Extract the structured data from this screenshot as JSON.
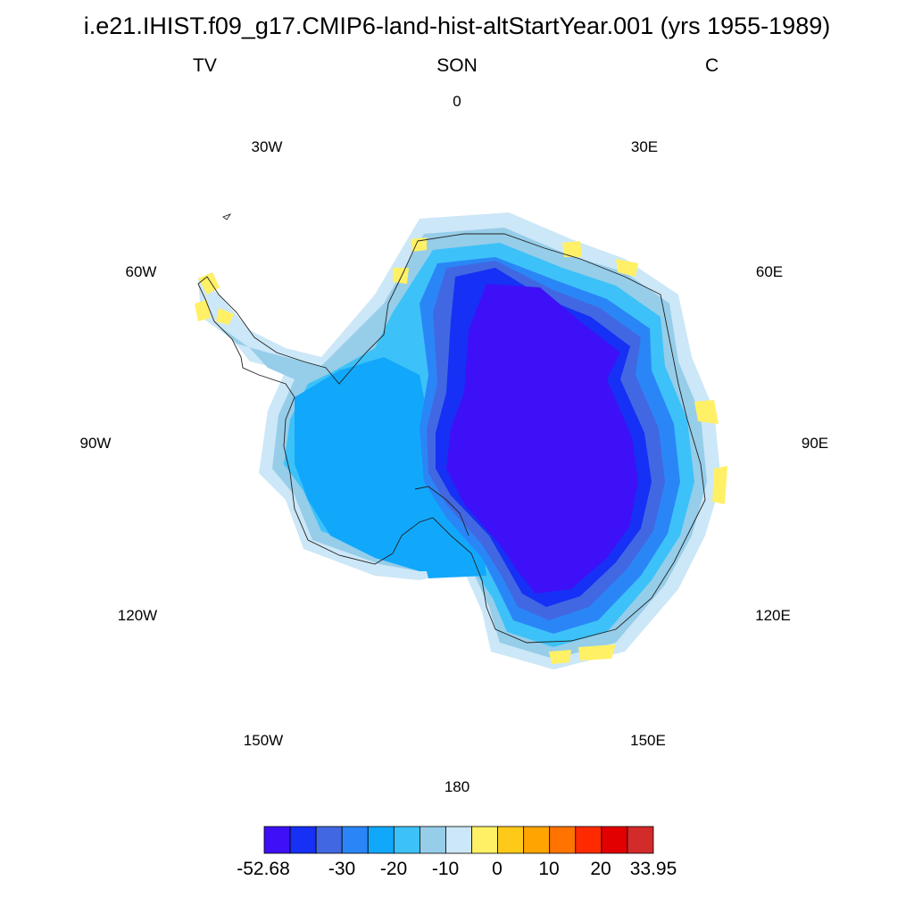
{
  "title": "i.e21.IHIST.f09_g17.CMIP6-land-hist-altStartYear.001 (yrs 1955-1989)",
  "left_label": "TV",
  "center_label": "SON",
  "right_label": "C",
  "longitude_labels": {
    "lon_0": "0",
    "lon_30e": "30E",
    "lon_60e": "60E",
    "lon_90e": "90E",
    "lon_120e": "120E",
    "lon_150e": "150E",
    "lon_180": "180",
    "lon_150w": "150W",
    "lon_120w": "120W",
    "lon_90w": "90W",
    "lon_60w": "60W",
    "lon_30w": "30W"
  },
  "colorbar": {
    "colors": [
      "#3e10f7",
      "#1630f5",
      "#4168e2",
      "#2a86f7",
      "#11a8fb",
      "#3cc2f8",
      "#96cde9",
      "#cce7f7",
      "#fff066",
      "#ffc919",
      "#ffa400",
      "#ff7300",
      "#ff2a00",
      "#e20000",
      "#d32a2a"
    ],
    "tick_labels": {
      "min": "-52.68",
      "t1": "-30",
      "t2": "-20",
      "t3": "-10",
      "t4": "0",
      "t5": "10",
      "t6": "20",
      "max": "33.95"
    }
  }
}
